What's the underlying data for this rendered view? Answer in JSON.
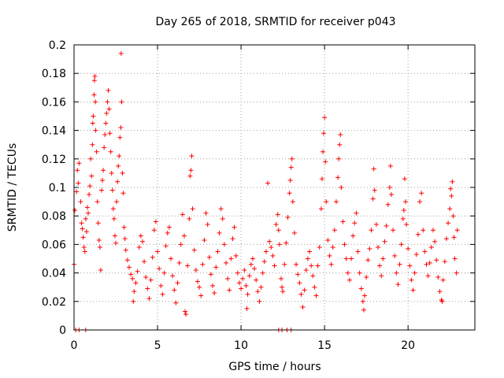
{
  "chart_data": {
    "type": "scatter",
    "title": "Day 265 of 2018, SRMTID for receiver p043",
    "xlabel": "GPS time / hours",
    "ylabel": "SRMTID / TECUs",
    "xlim": [
      0,
      24
    ],
    "ylim": [
      0,
      0.2
    ],
    "xticks": [
      "0",
      "5",
      "10",
      "15",
      "20"
    ],
    "yticks": [
      "0",
      "0.02",
      "0.04",
      "0.06",
      "0.08",
      "0.1",
      "0.12",
      "0.14",
      "0.16",
      "0.18",
      "0.2"
    ],
    "grid": true,
    "marker": "plus",
    "color": "#ff0000",
    "series": [
      {
        "name": "SRMTID",
        "points": [
          [
            0.0,
            0.046
          ],
          [
            0.05,
            0.084
          ],
          [
            0.15,
            0.097
          ],
          [
            0.2,
            0.112
          ],
          [
            0.25,
            0.103
          ],
          [
            0.3,
            0.117
          ],
          [
            0.4,
            0.09
          ],
          [
            0.45,
            0.075
          ],
          [
            0.5,
            0.071
          ],
          [
            0.55,
            0.065
          ],
          [
            0.6,
            0.058
          ],
          [
            0.65,
            0.055
          ],
          [
            0.7,
            0.078
          ],
          [
            0.75,
            0.069
          ],
          [
            0.8,
            0.086
          ],
          [
            0.85,
            0.082
          ],
          [
            0.9,
            0.095
          ],
          [
            0.95,
            0.101
          ],
          [
            1.0,
            0.12
          ],
          [
            1.05,
            0.108
          ],
          [
            1.1,
            0.13
          ],
          [
            1.12,
            0.145
          ],
          [
            1.15,
            0.15
          ],
          [
            1.2,
            0.165
          ],
          [
            1.22,
            0.175
          ],
          [
            1.25,
            0.178
          ],
          [
            1.28,
            0.16
          ],
          [
            1.3,
            0.14
          ],
          [
            1.35,
            0.125
          ],
          [
            1.4,
            0.09
          ],
          [
            1.45,
            0.075
          ],
          [
            1.5,
            0.063
          ],
          [
            1.55,
            0.058
          ],
          [
            1.6,
            0.042
          ],
          [
            1.65,
            0.098
          ],
          [
            1.7,
            0.105
          ],
          [
            1.75,
            0.112
          ],
          [
            1.8,
            0.128
          ],
          [
            1.85,
            0.137
          ],
          [
            1.9,
            0.145
          ],
          [
            1.95,
            0.152
          ],
          [
            2.0,
            0.16
          ],
          [
            2.05,
            0.168
          ],
          [
            2.1,
            0.155
          ],
          [
            2.15,
            0.138
          ],
          [
            2.2,
            0.125
          ],
          [
            2.25,
            0.11
          ],
          [
            2.3,
            0.098
          ],
          [
            2.35,
            0.085
          ],
          [
            2.4,
            0.078
          ],
          [
            2.45,
            0.066
          ],
          [
            2.5,
            0.061
          ],
          [
            2.55,
            0.09
          ],
          [
            2.6,
            0.104
          ],
          [
            2.65,
            0.115
          ],
          [
            2.7,
            0.122
          ],
          [
            2.75,
            0.135
          ],
          [
            2.8,
            0.142
          ],
          [
            2.82,
            0.194
          ],
          [
            2.85,
            0.16
          ],
          [
            2.9,
            0.11
          ],
          [
            2.95,
            0.096
          ],
          [
            3.0,
            0.072
          ],
          [
            3.05,
            0.064
          ],
          [
            3.1,
            0.056
          ],
          [
            3.2,
            0.049
          ],
          [
            3.3,
            0.044
          ],
          [
            3.4,
            0.039
          ],
          [
            3.5,
            0.036
          ],
          [
            3.55,
            0.02
          ],
          [
            3.6,
            0.027
          ],
          [
            3.7,
            0.033
          ],
          [
            3.8,
            0.041
          ],
          [
            3.9,
            0.058
          ],
          [
            4.0,
            0.066
          ],
          [
            4.1,
            0.062
          ],
          [
            4.2,
            0.048
          ],
          [
            4.3,
            0.037
          ],
          [
            4.4,
            0.029
          ],
          [
            4.5,
            0.022
          ],
          [
            4.6,
            0.035
          ],
          [
            4.7,
            0.051
          ],
          [
            4.8,
            0.07
          ],
          [
            4.9,
            0.076
          ],
          [
            5.0,
            0.055
          ],
          [
            5.1,
            0.043
          ],
          [
            5.2,
            0.031
          ],
          [
            5.3,
            0.025
          ],
          [
            5.4,
            0.04
          ],
          [
            5.5,
            0.059
          ],
          [
            5.6,
            0.068
          ],
          [
            5.7,
            0.072
          ],
          [
            5.8,
            0.05
          ],
          [
            5.9,
            0.038
          ],
          [
            6.0,
            0.028
          ],
          [
            6.1,
            0.019
          ],
          [
            6.2,
            0.033
          ],
          [
            6.3,
            0.047
          ],
          [
            6.4,
            0.06
          ],
          [
            6.5,
            0.081
          ],
          [
            6.6,
            0.066
          ],
          [
            6.65,
            0.013
          ],
          [
            6.7,
            0.011
          ],
          [
            6.8,
            0.045
          ],
          [
            6.9,
            0.078
          ],
          [
            6.95,
            0.108
          ],
          [
            7.0,
            0.112
          ],
          [
            7.05,
            0.122
          ],
          [
            7.1,
            0.085
          ],
          [
            7.2,
            0.056
          ],
          [
            7.3,
            0.042
          ],
          [
            7.4,
            0.034
          ],
          [
            7.5,
            0.03
          ],
          [
            7.6,
            0.024
          ],
          [
            7.7,
            0.046
          ],
          [
            7.8,
            0.063
          ],
          [
            7.9,
            0.082
          ],
          [
            8.0,
            0.074
          ],
          [
            8.1,
            0.051
          ],
          [
            8.2,
            0.039
          ],
          [
            8.3,
            0.031
          ],
          [
            8.4,
            0.026
          ],
          [
            8.5,
            0.044
          ],
          [
            8.6,
            0.055
          ],
          [
            8.7,
            0.068
          ],
          [
            8.8,
            0.085
          ],
          [
            8.9,
            0.078
          ],
          [
            9.0,
            0.06
          ],
          [
            9.1,
            0.047
          ],
          [
            9.2,
            0.036
          ],
          [
            9.3,
            0.028
          ],
          [
            9.4,
            0.05
          ],
          [
            9.5,
            0.064
          ],
          [
            9.6,
            0.072
          ],
          [
            9.7,
            0.052
          ],
          [
            9.8,
            0.04
          ],
          [
            9.9,
            0.033
          ],
          [
            10.0,
            0.029
          ],
          [
            10.1,
            0.036
          ],
          [
            10.2,
            0.042
          ],
          [
            10.3,
            0.031
          ],
          [
            10.35,
            0.015
          ],
          [
            10.4,
            0.025
          ],
          [
            10.5,
            0.038
          ],
          [
            10.6,
            0.046
          ],
          [
            10.7,
            0.05
          ],
          [
            10.8,
            0.043
          ],
          [
            10.9,
            0.035
          ],
          [
            11.0,
            0.027
          ],
          [
            11.1,
            0.02
          ],
          [
            11.2,
            0.03
          ],
          [
            11.3,
            0.04
          ],
          [
            11.4,
            0.048
          ],
          [
            11.5,
            0.055
          ],
          [
            11.6,
            0.103
          ],
          [
            11.7,
            0.062
          ],
          [
            11.8,
            0.058
          ],
          [
            11.9,
            0.052
          ],
          [
            12.0,
            0.045
          ],
          [
            12.1,
            0.074
          ],
          [
            12.2,
            0.081
          ],
          [
            12.25,
            0.07
          ],
          [
            12.3,
            0.06
          ],
          [
            12.4,
            0.036
          ],
          [
            12.45,
            0.03
          ],
          [
            12.5,
            0.027
          ],
          [
            12.6,
            0.046
          ],
          [
            12.7,
            0.061
          ],
          [
            12.8,
            0.079
          ],
          [
            12.9,
            0.096
          ],
          [
            12.95,
            0.105
          ],
          [
            13.0,
            0.114
          ],
          [
            13.05,
            0.12
          ],
          [
            13.1,
            0.09
          ],
          [
            13.2,
            0.068
          ],
          [
            13.3,
            0.046
          ],
          [
            13.4,
            0.039
          ],
          [
            13.5,
            0.033
          ],
          [
            13.6,
            0.025
          ],
          [
            13.7,
            0.016
          ],
          [
            13.8,
            0.028
          ],
          [
            13.9,
            0.042
          ],
          [
            14.0,
            0.05
          ],
          [
            14.1,
            0.055
          ],
          [
            14.2,
            0.045
          ],
          [
            14.3,
            0.038
          ],
          [
            14.4,
            0.03
          ],
          [
            14.5,
            0.024
          ],
          [
            14.6,
            0.045
          ],
          [
            14.7,
            0.058
          ],
          [
            14.8,
            0.085
          ],
          [
            14.85,
            0.106
          ],
          [
            14.9,
            0.125
          ],
          [
            14.95,
            0.138
          ],
          [
            15.0,
            0.149
          ],
          [
            15.05,
            0.118
          ],
          [
            15.1,
            0.09
          ],
          [
            15.2,
            0.063
          ],
          [
            15.3,
            0.052
          ],
          [
            15.4,
            0.046
          ],
          [
            15.5,
            0.058
          ],
          [
            15.6,
            0.07
          ],
          [
            15.7,
            0.09
          ],
          [
            15.8,
            0.107
          ],
          [
            15.85,
            0.12
          ],
          [
            15.9,
            0.13
          ],
          [
            15.95,
            0.137
          ],
          [
            16.0,
            0.1
          ],
          [
            16.1,
            0.076
          ],
          [
            16.2,
            0.06
          ],
          [
            16.3,
            0.05
          ],
          [
            16.4,
            0.04
          ],
          [
            16.5,
            0.035
          ],
          [
            16.6,
            0.05
          ],
          [
            16.7,
            0.066
          ],
          [
            16.8,
            0.075
          ],
          [
            16.9,
            0.082
          ],
          [
            17.0,
            0.055
          ],
          [
            17.1,
            0.04
          ],
          [
            17.2,
            0.029
          ],
          [
            17.3,
            0.02
          ],
          [
            17.35,
            0.014
          ],
          [
            17.4,
            0.024
          ],
          [
            17.5,
            0.037
          ],
          [
            17.6,
            0.049
          ],
          [
            17.7,
            0.057
          ],
          [
            17.8,
            0.07
          ],
          [
            17.9,
            0.092
          ],
          [
            17.95,
            0.113
          ],
          [
            18.0,
            0.098
          ],
          [
            18.1,
            0.074
          ],
          [
            18.2,
            0.058
          ],
          [
            18.3,
            0.045
          ],
          [
            18.4,
            0.038
          ],
          [
            18.5,
            0.05
          ],
          [
            18.6,
            0.062
          ],
          [
            18.7,
            0.073
          ],
          [
            18.8,
            0.088
          ],
          [
            18.9,
            0.1
          ],
          [
            18.95,
            0.115
          ],
          [
            19.0,
            0.095
          ],
          [
            19.1,
            0.07
          ],
          [
            19.2,
            0.052
          ],
          [
            19.3,
            0.04
          ],
          [
            19.4,
            0.032
          ],
          [
            19.5,
            0.046
          ],
          [
            19.6,
            0.06
          ],
          [
            19.7,
            0.078
          ],
          [
            19.75,
            0.084
          ],
          [
            19.8,
            0.106
          ],
          [
            19.85,
            0.09
          ],
          [
            19.9,
            0.074
          ],
          [
            20.0,
            0.057
          ],
          [
            20.1,
            0.045
          ],
          [
            20.2,
            0.035
          ],
          [
            20.3,
            0.028
          ],
          [
            20.4,
            0.04
          ],
          [
            20.5,
            0.053
          ],
          [
            20.6,
            0.067
          ],
          [
            20.7,
            0.09
          ],
          [
            20.8,
            0.096
          ],
          [
            20.9,
            0.07
          ],
          [
            21.0,
            0.055
          ],
          [
            21.1,
            0.046
          ],
          [
            21.2,
            0.038
          ],
          [
            21.3,
            0.047
          ],
          [
            21.4,
            0.058
          ],
          [
            21.5,
            0.07
          ],
          [
            21.6,
            0.062
          ],
          [
            21.7,
            0.049
          ],
          [
            21.8,
            0.037
          ],
          [
            21.9,
            0.027
          ],
          [
            22.0,
            0.021
          ],
          [
            22.05,
            0.02
          ],
          [
            22.1,
            0.035
          ],
          [
            22.2,
            0.048
          ],
          [
            22.3,
            0.064
          ],
          [
            22.4,
            0.075
          ],
          [
            22.5,
            0.085
          ],
          [
            22.55,
            0.099
          ],
          [
            22.6,
            0.094
          ],
          [
            22.65,
            0.104
          ],
          [
            22.7,
            0.08
          ],
          [
            22.75,
            0.065
          ],
          [
            22.8,
            0.05
          ],
          [
            22.9,
            0.04
          ],
          [
            22.95,
            0.07
          ],
          [
            0.1,
            0.0
          ],
          [
            0.3,
            0.0
          ],
          [
            0.7,
            0.0
          ],
          [
            12.25,
            0.0
          ],
          [
            12.45,
            0.0
          ],
          [
            12.75,
            0.0
          ],
          [
            13.0,
            0.0
          ]
        ]
      }
    ]
  }
}
